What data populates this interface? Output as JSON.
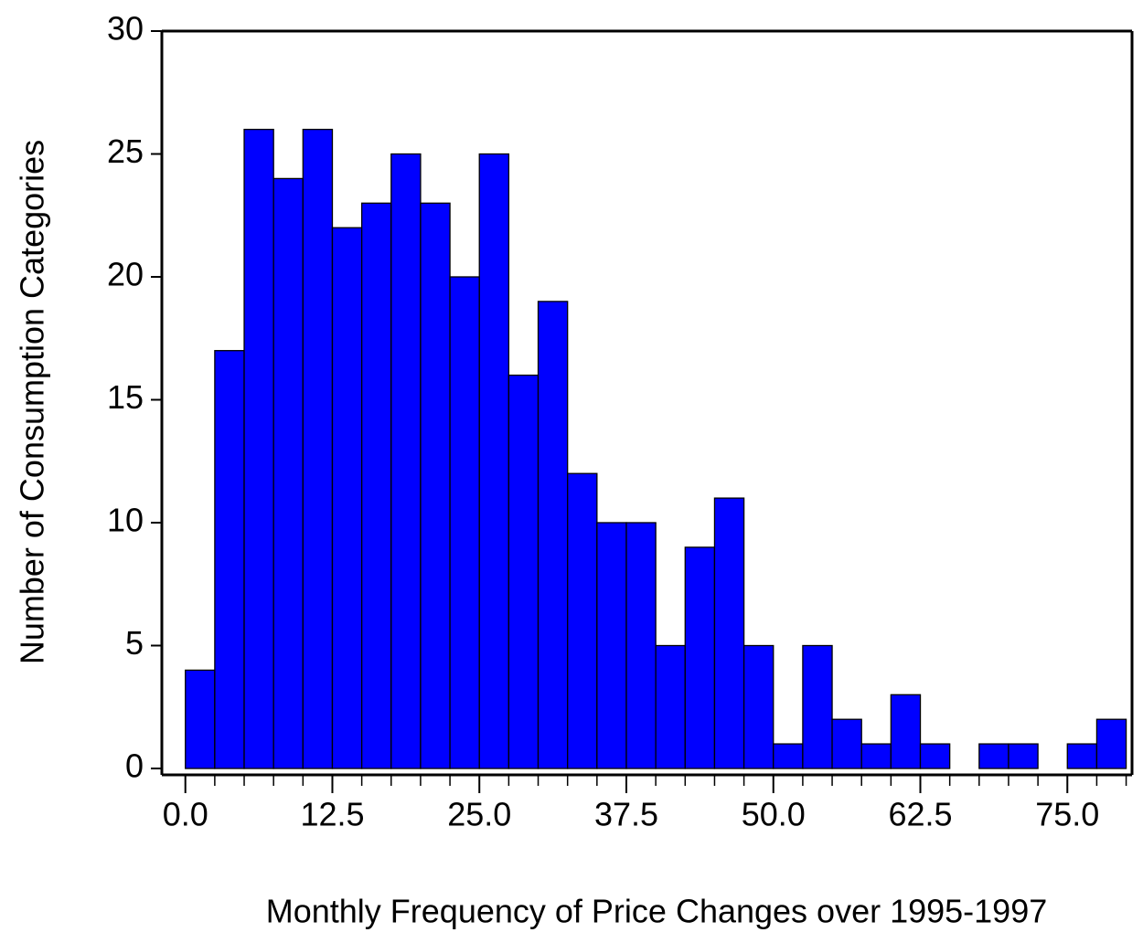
{
  "chart_data": {
    "type": "histogram",
    "x_label": "Monthly Frequency of Price Changes over 1995-1997",
    "y_label": "Number of Consumption Categories",
    "bins": [
      0,
      2.5,
      5,
      7.5,
      10,
      12.5,
      15,
      17.5,
      20,
      22.5,
      25,
      27.5,
      30,
      32.5,
      35,
      37.5,
      40,
      42.5,
      45,
      47.5,
      50,
      52.5,
      55,
      57.5,
      60,
      62.5,
      65,
      67.5,
      70,
      72.5,
      75,
      77.5,
      80
    ],
    "values": [
      4,
      17,
      26,
      24,
      26,
      22,
      23,
      25,
      23,
      20,
      25,
      16,
      19,
      12,
      10,
      10,
      5,
      9,
      11,
      5,
      1,
      5,
      2,
      1,
      3,
      1,
      0,
      1,
      1,
      0,
      1,
      2
    ],
    "color": "#0000ff",
    "xlim": [
      -2,
      80.5
    ],
    "ylim": [
      0,
      30
    ],
    "xticks": [
      {
        "value": 0,
        "label": "0.0"
      },
      {
        "value": 12.5,
        "label": "12.5"
      },
      {
        "value": 25,
        "label": "25.0"
      },
      {
        "value": 37.5,
        "label": "37.5"
      },
      {
        "value": 50,
        "label": "50.0"
      },
      {
        "value": 62.5,
        "label": "62.5"
      },
      {
        "value": 75,
        "label": "75.0"
      }
    ],
    "yticks": [
      0,
      5,
      10,
      15,
      20,
      25,
      30
    ]
  }
}
